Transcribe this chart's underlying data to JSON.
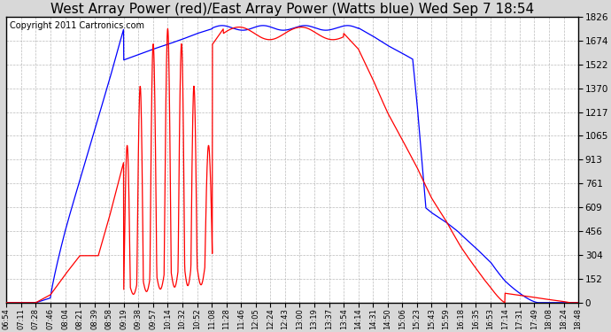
{
  "title": "West Array Power (red)/East Array Power (Watts blue) Wed Sep 7 18:54",
  "copyright": "Copyright 2011 Cartronics.com",
  "background_color": "#d8d8d8",
  "plot_background": "#ffffff",
  "yticks": [
    0.0,
    152.2,
    304.3,
    456.5,
    608.7,
    760.8,
    913.0,
    1065.2,
    1217.4,
    1369.5,
    1521.7,
    1673.9,
    1826.0
  ],
  "ymax": 1826.0,
  "ymin": 0.0,
  "x_labels": [
    "06:54",
    "07:11",
    "07:28",
    "07:46",
    "08:04",
    "08:21",
    "08:39",
    "08:58",
    "09:19",
    "09:38",
    "09:57",
    "10:14",
    "10:32",
    "10:52",
    "11:08",
    "11:28",
    "11:46",
    "12:05",
    "12:24",
    "12:43",
    "13:00",
    "13:19",
    "13:37",
    "13:54",
    "14:14",
    "14:31",
    "14:50",
    "15:06",
    "15:23",
    "15:43",
    "15:59",
    "16:18",
    "16:35",
    "16:53",
    "17:14",
    "17:31",
    "17:49",
    "18:08",
    "18:24",
    "18:48"
  ],
  "grid_color": "#aaaaaa",
  "line_red": "#ff0000",
  "line_blue": "#0000ff",
  "title_fontsize": 11,
  "copyright_fontsize": 7
}
